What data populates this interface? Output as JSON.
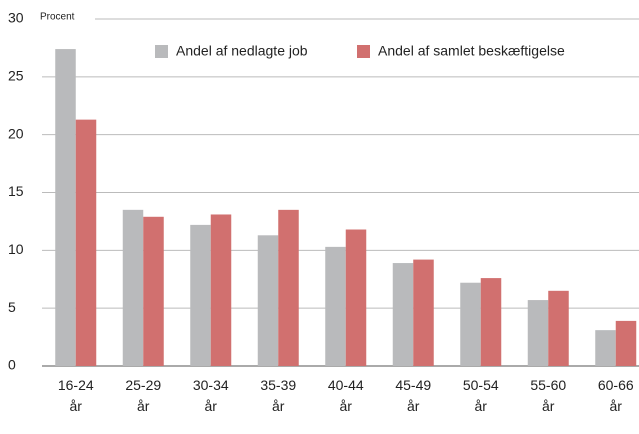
{
  "chart_data": {
    "type": "bar",
    "ylabel": "Procent",
    "categories": [
      "16-24 år",
      "25-29 år",
      "30-34 år",
      "35-39 år",
      "40-44 år",
      "45-49 år",
      "50-54 år",
      "55-60 år",
      "60-66 år"
    ],
    "series": [
      {
        "name": "Andel af nedlagte job",
        "color": "#b9babc",
        "values": [
          27.4,
          13.5,
          12.2,
          11.3,
          10.3,
          8.9,
          7.2,
          5.7,
          3.1
        ]
      },
      {
        "name": "Andel af samlet beskæftigelse",
        "color": "#d1706f",
        "values": [
          21.3,
          12.9,
          13.1,
          13.5,
          11.8,
          9.2,
          7.6,
          6.5,
          3.9
        ]
      }
    ],
    "ylim": [
      0,
      30
    ],
    "yticks": [
      0,
      5,
      10,
      15,
      20,
      25,
      30
    ],
    "grid": true
  }
}
